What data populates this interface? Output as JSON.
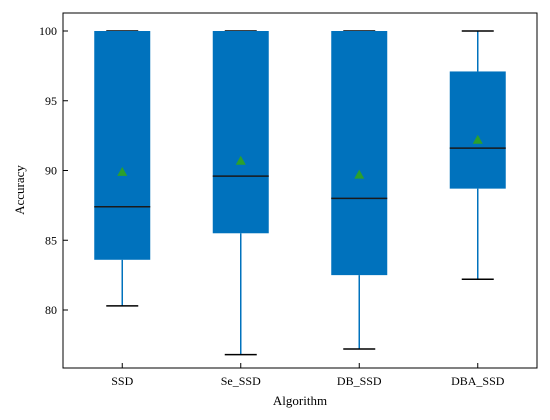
{
  "chart_data": {
    "type": "box",
    "title": "",
    "xlabel": "Algorithm",
    "ylabel": "Accuracy",
    "ylim": [
      76,
      102
    ],
    "yticks": [
      80,
      85,
      90,
      95,
      100
    ],
    "grid": false,
    "categories": [
      "SSD",
      "Se_SSD",
      "DB_SSD",
      "DBA_SSD"
    ],
    "boxes": [
      {
        "category": "SSD",
        "whisker_low": 80.3,
        "q1": 83.6,
        "median": 87.4,
        "q3": 100.0,
        "whisker_high": 100.0,
        "mean": 89.9
      },
      {
        "category": "Se_SSD",
        "whisker_low": 76.8,
        "q1": 85.5,
        "median": 89.6,
        "q3": 100.0,
        "whisker_high": 100.0,
        "mean": 90.7
      },
      {
        "category": "DB_SSD",
        "whisker_low": 77.2,
        "q1": 82.5,
        "median": 88.0,
        "q3": 100.0,
        "whisker_high": 100.0,
        "mean": 89.7
      },
      {
        "category": "DBA_SSD",
        "whisker_low": 82.2,
        "q1": 88.7,
        "median": 91.6,
        "q3": 97.1,
        "whisker_high": 100.0,
        "mean": 92.2
      }
    ],
    "colors": {
      "box_fill": "#0072bd",
      "whisker": "#0072bd",
      "median": "#1a1a1a",
      "mean_marker": "#2ca02c",
      "cap": "#000000"
    }
  }
}
